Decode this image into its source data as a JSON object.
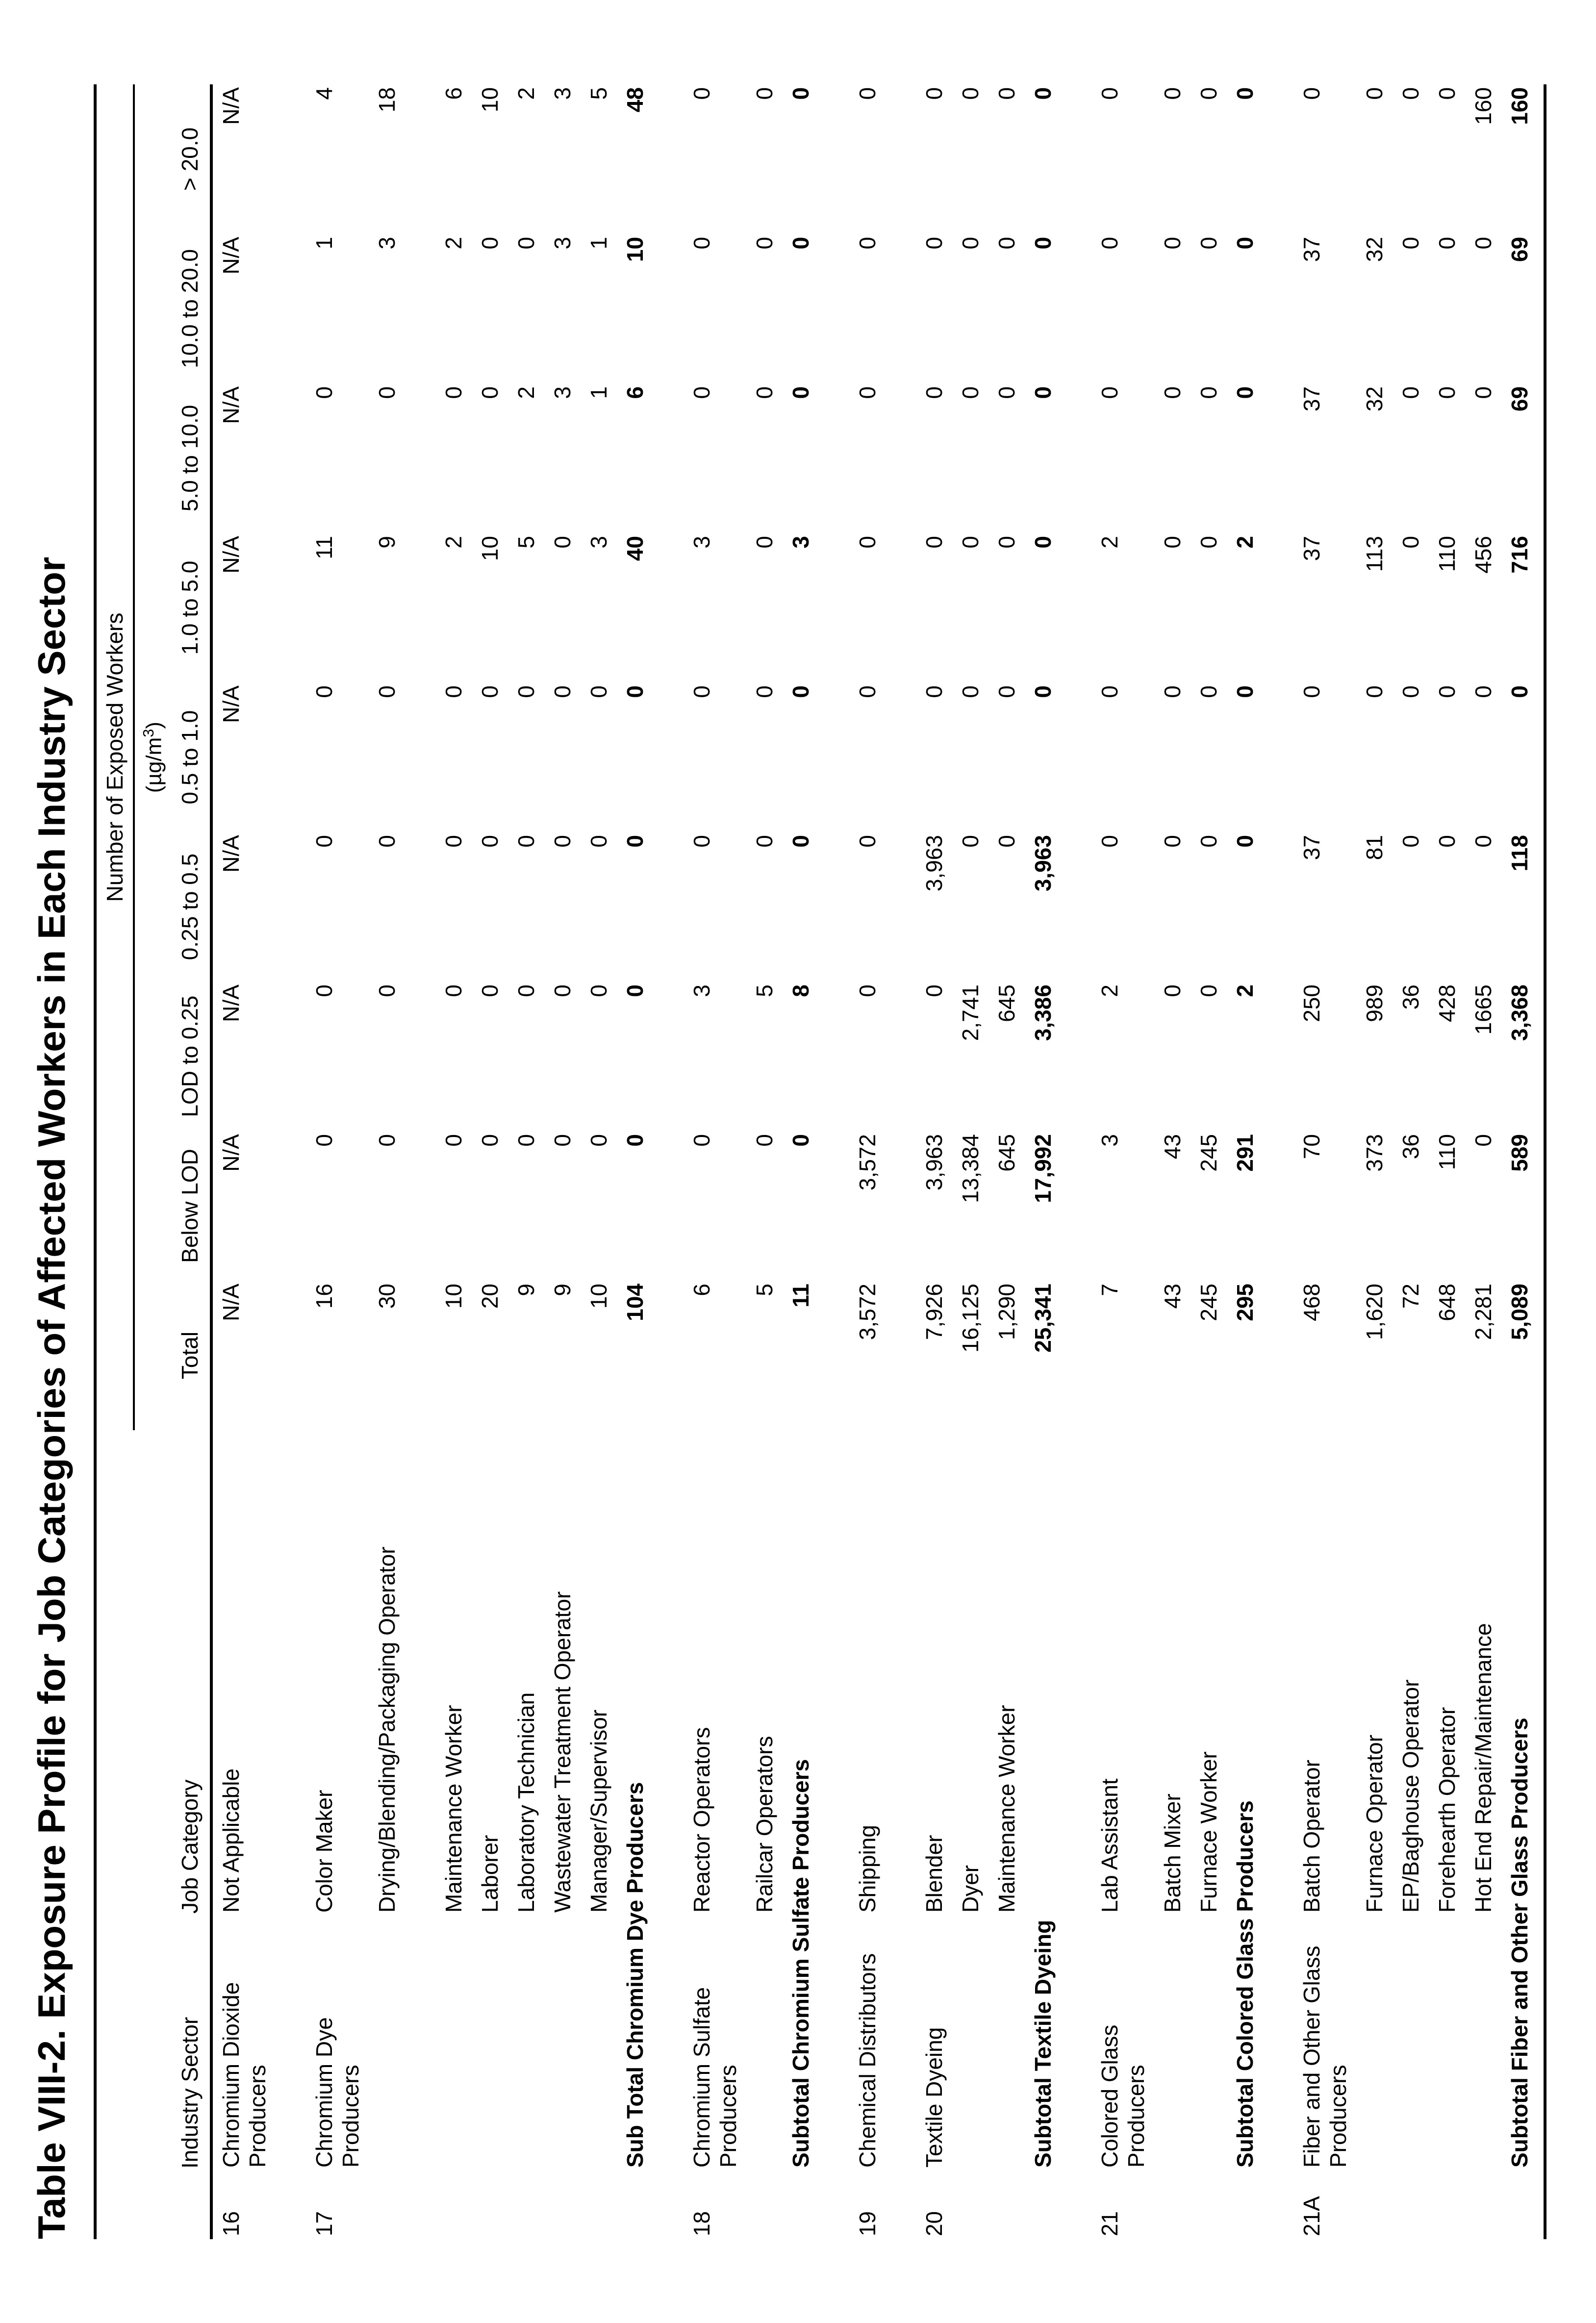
{
  "title": "Table VIII-2.  Exposure Profile for Job Categories of Affected Workers in Each Industry Sector",
  "header": {
    "group_label": "Number of Exposed Workers",
    "unit_label_html": "(µg/m³)",
    "unit_label": "(µg/m3)",
    "cols": {
      "idx": "",
      "sector": "Industry Sector",
      "job": "Job Category",
      "total": "Total",
      "below_lod": "Below LOD",
      "lod_025": "LOD to 0.25",
      "r025_05": "0.25 to 0.5",
      "r05_1": "0.5 to 1.0",
      "r1_5": "1.0 to 5.0",
      "r5_10": "5.0 to 10.0",
      "r10_20": "10.0 to 20.0",
      "r20p": "> 20.0"
    }
  },
  "rows": [
    {
      "idx": "16",
      "sector": "Chromium Dioxide Producers",
      "job": "Not Applicable",
      "total": "N/A",
      "below_lod": "N/A",
      "lod_025": "N/A",
      "r025_05": "N/A",
      "r05_1": "N/A",
      "r1_5": "N/A",
      "r5_10": "N/A",
      "r10_20": "N/A",
      "r20p": "N/A"
    },
    {
      "spacer": true
    },
    {
      "idx": "17",
      "sector": "Chromium Dye Producers",
      "job": "Color Maker",
      "total": "16",
      "below_lod": "0",
      "lod_025": "0",
      "r025_05": "0",
      "r05_1": "0",
      "r1_5": "11",
      "r5_10": "0",
      "r10_20": "1",
      "r20p": "4"
    },
    {
      "idx": "",
      "sector": "",
      "job": "Drying/Blending/Packaging Operator",
      "total": "30",
      "below_lod": "0",
      "lod_025": "0",
      "r025_05": "0",
      "r05_1": "0",
      "r1_5": "9",
      "r5_10": "0",
      "r10_20": "3",
      "r20p": "18"
    },
    {
      "spacer": true
    },
    {
      "idx": "",
      "sector": "",
      "job": "Maintenance Worker",
      "total": "10",
      "below_lod": "0",
      "lod_025": "0",
      "r025_05": "0",
      "r05_1": "0",
      "r1_5": "2",
      "r5_10": "0",
      "r10_20": "2",
      "r20p": "6"
    },
    {
      "idx": "",
      "sector": "",
      "job": "Laborer",
      "total": "20",
      "below_lod": "0",
      "lod_025": "0",
      "r025_05": "0",
      "r05_1": "0",
      "r1_5": "10",
      "r5_10": "0",
      "r10_20": "0",
      "r20p": "10"
    },
    {
      "idx": "",
      "sector": "",
      "job": "Laboratory Technician",
      "total": "9",
      "below_lod": "0",
      "lod_025": "0",
      "r025_05": "0",
      "r05_1": "0",
      "r1_5": "5",
      "r5_10": "2",
      "r10_20": "0",
      "r20p": "2"
    },
    {
      "idx": "",
      "sector": "",
      "job": "Wastewater Treatment Operator",
      "total": "9",
      "below_lod": "0",
      "lod_025": "0",
      "r025_05": "0",
      "r05_1": "0",
      "r1_5": "0",
      "r5_10": "3",
      "r10_20": "3",
      "r20p": "3"
    },
    {
      "idx": "",
      "sector": "",
      "job": "Manager/Supervisor",
      "total": "10",
      "below_lod": "0",
      "lod_025": "0",
      "r025_05": "0",
      "r05_1": "0",
      "r1_5": "3",
      "r5_10": "1",
      "r10_20": "1",
      "r20p": "5"
    },
    {
      "sub": true,
      "idx": "",
      "sector": "",
      "job": "Sub Total Chromium Dye Producers",
      "total": "104",
      "below_lod": "0",
      "lod_025": "0",
      "r025_05": "0",
      "r05_1": "0",
      "r1_5": "40",
      "r5_10": "6",
      "r10_20": "10",
      "r20p": "48"
    },
    {
      "spacer": true
    },
    {
      "idx": "18",
      "sector": "Chromium Sulfate Producers",
      "job": "Reactor Operators",
      "total": "6",
      "below_lod": "0",
      "lod_025": "3",
      "r025_05": "0",
      "r05_1": "0",
      "r1_5": "3",
      "r5_10": "0",
      "r10_20": "0",
      "r20p": "0"
    },
    {
      "idx": "",
      "sector": "",
      "job": "Railcar Operators",
      "total": "5",
      "below_lod": "0",
      "lod_025": "5",
      "r025_05": "0",
      "r05_1": "0",
      "r1_5": "0",
      "r5_10": "0",
      "r10_20": "0",
      "r20p": "0"
    },
    {
      "sub": true,
      "idx": "",
      "sector": "",
      "job": "Subtotal Chromium Sulfate Producers",
      "total": "11",
      "below_lod": "0",
      "lod_025": "8",
      "r025_05": "0",
      "r05_1": "0",
      "r1_5": "3",
      "r5_10": "0",
      "r10_20": "0",
      "r20p": "0"
    },
    {
      "spacer": true
    },
    {
      "idx": "19",
      "sector": "Chemical Distributors",
      "job": "Shipping",
      "total": "3,572",
      "below_lod": "3,572",
      "lod_025": "0",
      "r025_05": "0",
      "r05_1": "0",
      "r1_5": "0",
      "r5_10": "0",
      "r10_20": "0",
      "r20p": "0"
    },
    {
      "spacer": true
    },
    {
      "idx": "20",
      "sector": "Textile Dyeing",
      "job": "Blender",
      "total": "7,926",
      "below_lod": "3,963",
      "lod_025": "0",
      "r025_05": "3,963",
      "r05_1": "0",
      "r1_5": "0",
      "r5_10": "0",
      "r10_20": "0",
      "r20p": "0"
    },
    {
      "idx": "",
      "sector": "",
      "job": "Dyer",
      "total": "16,125",
      "below_lod": "13,384",
      "lod_025": "2,741",
      "r025_05": "0",
      "r05_1": "0",
      "r1_5": "0",
      "r5_10": "0",
      "r10_20": "0",
      "r20p": "0"
    },
    {
      "idx": "",
      "sector": "",
      "job": "Maintenance Worker",
      "total": "1,290",
      "below_lod": "645",
      "lod_025": "645",
      "r025_05": "0",
      "r05_1": "0",
      "r1_5": "0",
      "r5_10": "0",
      "r10_20": "0",
      "r20p": "0"
    },
    {
      "sub": true,
      "idx": "",
      "sector": "",
      "job": "Subtotal Textile Dyeing",
      "total": "25,341",
      "below_lod": "17,992",
      "lod_025": "3,386",
      "r025_05": "3,963",
      "r05_1": "0",
      "r1_5": "0",
      "r5_10": "0",
      "r10_20": "0",
      "r20p": "0"
    },
    {
      "spacer": true
    },
    {
      "idx": "21",
      "sector": "Colored Glass Producers",
      "job": "Lab Assistant",
      "total": "7",
      "below_lod": "3",
      "lod_025": "2",
      "r025_05": "0",
      "r05_1": "0",
      "r1_5": "2",
      "r5_10": "0",
      "r10_20": "0",
      "r20p": "0"
    },
    {
      "idx": "",
      "sector": "",
      "job": "Batch Mixer",
      "total": "43",
      "below_lod": "43",
      "lod_025": "0",
      "r025_05": "0",
      "r05_1": "0",
      "r1_5": "0",
      "r5_10": "0",
      "r10_20": "0",
      "r20p": "0"
    },
    {
      "idx": "",
      "sector": "",
      "job": "Furnace Worker",
      "total": "245",
      "below_lod": "245",
      "lod_025": "0",
      "r025_05": "0",
      "r05_1": "0",
      "r1_5": "0",
      "r5_10": "0",
      "r10_20": "0",
      "r20p": "0"
    },
    {
      "sub": true,
      "idx": "",
      "sector": "",
      "job": "Subtotal Colored Glass Producers",
      "total": "295",
      "below_lod": "291",
      "lod_025": "2",
      "r025_05": "0",
      "r05_1": "0",
      "r1_5": "2",
      "r5_10": "0",
      "r10_20": "0",
      "r20p": "0"
    },
    {
      "spacer": true
    },
    {
      "idx": "21A",
      "sector": "Fiber and Other Glass Producers",
      "job": "Batch Operator",
      "total": "468",
      "below_lod": "70",
      "lod_025": "250",
      "r025_05": "37",
      "r05_1": "0",
      "r1_5": "37",
      "r5_10": "37",
      "r10_20": "37",
      "r20p": "0"
    },
    {
      "idx": "",
      "sector": "",
      "job": "Furnace Operator",
      "total": "1,620",
      "below_lod": "373",
      "lod_025": "989",
      "r025_05": "81",
      "r05_1": "0",
      "r1_5": "113",
      "r5_10": "32",
      "r10_20": "32",
      "r20p": "0"
    },
    {
      "idx": "",
      "sector": "",
      "job": "EP/Baghouse Operator",
      "total": "72",
      "below_lod": "36",
      "lod_025": "36",
      "r025_05": "0",
      "r05_1": "0",
      "r1_5": "0",
      "r5_10": "0",
      "r10_20": "0",
      "r20p": "0"
    },
    {
      "idx": "",
      "sector": "",
      "job": "Forehearth Operator",
      "total": "648",
      "below_lod": "110",
      "lod_025": "428",
      "r025_05": "0",
      "r05_1": "0",
      "r1_5": "110",
      "r5_10": "0",
      "r10_20": "0",
      "r20p": "0"
    },
    {
      "idx": "",
      "sector": "",
      "job": "Hot End Repair/Maintenance",
      "total": "2,281",
      "below_lod": "0",
      "lod_025": "1665",
      "r025_05": "0",
      "r05_1": "0",
      "r1_5": "456",
      "r5_10": "0",
      "r10_20": "0",
      "r20p": "160"
    },
    {
      "sub": true,
      "last": true,
      "idx": "",
      "sector": "",
      "job": "Subtotal Fiber and Other Glass Producers",
      "total": "5,089",
      "below_lod": "589",
      "lod_025": "3,368",
      "r025_05": "118",
      "r05_1": "0",
      "r1_5": "716",
      "r5_10": "69",
      "r10_20": "69",
      "r20p": "160"
    }
  ]
}
